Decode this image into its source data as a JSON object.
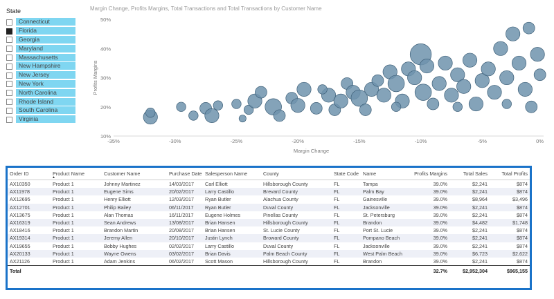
{
  "slicer": {
    "title": "State",
    "items": [
      {
        "label": "Connecticut",
        "checked": false
      },
      {
        "label": "Florida",
        "checked": true
      },
      {
        "label": "Georgia",
        "checked": false
      },
      {
        "label": "Maryland",
        "checked": false
      },
      {
        "label": "Massachusetts",
        "checked": false
      },
      {
        "label": "New Hampshire",
        "checked": false
      },
      {
        "label": "New Jersey",
        "checked": false
      },
      {
        "label": "New York",
        "checked": false
      },
      {
        "label": "North Carolina",
        "checked": false
      },
      {
        "label": "Rhode Island",
        "checked": false
      },
      {
        "label": "South Carolina",
        "checked": false
      },
      {
        "label": "Virginia",
        "checked": false
      }
    ]
  },
  "chart_data": {
    "type": "scatter",
    "title": "Margin Change, Profits Margins, Total Transactions and Total Transactions by Customer Name",
    "xlabel": "Margin Change",
    "ylabel": "Profits Margins",
    "xlim": [
      -35,
      0
    ],
    "ylim": [
      10,
      50
    ],
    "x_ticks": [
      "-35%",
      "-30%",
      "-25%",
      "-20%",
      "-15%",
      "-10%",
      "-5%",
      "0%"
    ],
    "y_ticks": [
      "10%",
      "20%",
      "30%",
      "40%",
      "50%"
    ],
    "grid": false,
    "bubble_color": "#6f93ad",
    "points": [
      {
        "x": -32,
        "y": 16.5,
        "size": 6
      },
      {
        "x": -32,
        "y": 18,
        "size": 4
      },
      {
        "x": -29.5,
        "y": 20,
        "size": 4
      },
      {
        "x": -28.5,
        "y": 17,
        "size": 4
      },
      {
        "x": -27.5,
        "y": 19.5,
        "size": 5
      },
      {
        "x": -27,
        "y": 17,
        "size": 6
      },
      {
        "x": -26.5,
        "y": 20.5,
        "size": 4
      },
      {
        "x": -25,
        "y": 21,
        "size": 4
      },
      {
        "x": -24.5,
        "y": 16,
        "size": 3
      },
      {
        "x": -24,
        "y": 19,
        "size": 4
      },
      {
        "x": -23.5,
        "y": 22,
        "size": 6
      },
      {
        "x": -23,
        "y": 25,
        "size": 5
      },
      {
        "x": -22,
        "y": 20,
        "size": 7
      },
      {
        "x": -21.5,
        "y": 17,
        "size": 5
      },
      {
        "x": -20.5,
        "y": 23,
        "size": 5
      },
      {
        "x": -20,
        "y": 20.5,
        "size": 6
      },
      {
        "x": -19.5,
        "y": 26,
        "size": 6
      },
      {
        "x": -18.5,
        "y": 19.5,
        "size": 5
      },
      {
        "x": -17.5,
        "y": 24,
        "size": 6
      },
      {
        "x": -17,
        "y": 19,
        "size": 5
      },
      {
        "x": -16.5,
        "y": 22,
        "size": 6
      },
      {
        "x": -16,
        "y": 28,
        "size": 5
      },
      {
        "x": -15.5,
        "y": 25,
        "size": 6
      },
      {
        "x": -15,
        "y": 23,
        "size": 7
      },
      {
        "x": -14.5,
        "y": 19,
        "size": 5
      },
      {
        "x": -14,
        "y": 26,
        "size": 6
      },
      {
        "x": -13.5,
        "y": 29,
        "size": 5
      },
      {
        "x": -13,
        "y": 24,
        "size": 6
      },
      {
        "x": -12.5,
        "y": 32,
        "size": 6
      },
      {
        "x": -12,
        "y": 28,
        "size": 7
      },
      {
        "x": -11.5,
        "y": 22,
        "size": 6
      },
      {
        "x": -11,
        "y": 33,
        "size": 6
      },
      {
        "x": -10.5,
        "y": 30,
        "size": 6
      },
      {
        "x": -10,
        "y": 38,
        "size": 9
      },
      {
        "x": -9.8,
        "y": 25,
        "size": 7
      },
      {
        "x": -9.5,
        "y": 34,
        "size": 6
      },
      {
        "x": -9,
        "y": 21,
        "size": 5
      },
      {
        "x": -8.5,
        "y": 28,
        "size": 6
      },
      {
        "x": -8,
        "y": 35,
        "size": 6
      },
      {
        "x": -7.5,
        "y": 24,
        "size": 6
      },
      {
        "x": -7,
        "y": 31,
        "size": 6
      },
      {
        "x": -6.5,
        "y": 27,
        "size": 6
      },
      {
        "x": -6,
        "y": 36,
        "size": 6
      },
      {
        "x": -5.5,
        "y": 21,
        "size": 6
      },
      {
        "x": -5,
        "y": 29,
        "size": 6
      },
      {
        "x": -4.5,
        "y": 33,
        "size": 6
      },
      {
        "x": -4,
        "y": 25,
        "size": 6
      },
      {
        "x": -3.5,
        "y": 40,
        "size": 6
      },
      {
        "x": -3,
        "y": 30,
        "size": 6
      },
      {
        "x": -2.5,
        "y": 45,
        "size": 6
      },
      {
        "x": -2,
        "y": 35,
        "size": 6
      },
      {
        "x": -1.5,
        "y": 26,
        "size": 6
      },
      {
        "x": -1.2,
        "y": 47,
        "size": 5
      },
      {
        "x": -0.5,
        "y": 38,
        "size": 6
      },
      {
        "x": -0.3,
        "y": 31,
        "size": 5
      },
      {
        "x": -1,
        "y": 20,
        "size": 5
      },
      {
        "x": -3,
        "y": 21,
        "size": 4
      },
      {
        "x": -7,
        "y": 20,
        "size": 4
      },
      {
        "x": -12,
        "y": 20,
        "size": 4
      },
      {
        "x": -18,
        "y": 26,
        "size": 4
      }
    ]
  },
  "table": {
    "columns": [
      {
        "label": "Order ID",
        "align": "left"
      },
      {
        "label": "Product Name",
        "align": "left"
      },
      {
        "label": "Customer Name",
        "align": "left"
      },
      {
        "label": "Purchase Date",
        "align": "left"
      },
      {
        "label": "Salesperson Name",
        "align": "left"
      },
      {
        "label": "County",
        "align": "left"
      },
      {
        "label": "State Code",
        "align": "left"
      },
      {
        "label": "Name",
        "align": "left"
      },
      {
        "label": "Profits Margins",
        "align": "right"
      },
      {
        "label": "Total Sales",
        "align": "right"
      },
      {
        "label": "Total Profits",
        "align": "right"
      }
    ],
    "rows": [
      [
        "AX10350",
        "Product 1",
        "Johnny Martinez",
        "14/03/2017",
        "Carl Elliott",
        "Hillsborough County",
        "FL",
        "Tampa",
        "39.0%",
        "$2,241",
        "$874"
      ],
      [
        "AX11978",
        "Product 1",
        "Eugene Sims",
        "20/02/2017",
        "Larry Castillo",
        "Brevard County",
        "FL",
        "Palm Bay",
        "39.0%",
        "$2,241",
        "$874"
      ],
      [
        "AX12695",
        "Product 1",
        "Henry Elliott",
        "12/03/2017",
        "Ryan Butler",
        "Alachua County",
        "FL",
        "Gainesville",
        "39.0%",
        "$8,964",
        "$3,496"
      ],
      [
        "AX12701",
        "Product 1",
        "Philip Bailey",
        "06/11/2017",
        "Ryan Butler",
        "Duval County",
        "FL",
        "Jacksonville",
        "39.0%",
        "$2,241",
        "$874"
      ],
      [
        "AX13675",
        "Product 1",
        "Alan Thomas",
        "16/11/2017",
        "Eugene Holmes",
        "Pinellas County",
        "FL",
        "St. Petersburg",
        "39.0%",
        "$2,241",
        "$874"
      ],
      [
        "AX16319",
        "Product 1",
        "Sean Andrews",
        "13/08/2017",
        "Brian Hansen",
        "Hillsborough County",
        "FL",
        "Brandon",
        "39.0%",
        "$4,482",
        "$1,748"
      ],
      [
        "AX18416",
        "Product 1",
        "Brandon Martin",
        "20/08/2017",
        "Brian Hansen",
        "St. Lucie County",
        "FL",
        "Port St. Lucie",
        "39.0%",
        "$2,241",
        "$874"
      ],
      [
        "AX19314",
        "Product 1",
        "Jeremy Allen",
        "20/10/2017",
        "Justin Lynch",
        "Broward County",
        "FL",
        "Pompano Beach",
        "39.0%",
        "$2,241",
        "$874"
      ],
      [
        "AX19655",
        "Product 1",
        "Bobby Hughes",
        "02/02/2017",
        "Larry Castillo",
        "Duval County",
        "FL",
        "Jacksonville",
        "39.0%",
        "$2,241",
        "$874"
      ],
      [
        "AX20133",
        "Product 1",
        "Wayne Owens",
        "03/02/2017",
        "Brian Davis",
        "Palm Beach County",
        "FL",
        "West Palm Beach",
        "39.0%",
        "$6,723",
        "$2,622"
      ],
      [
        "AX21126",
        "Product 1",
        "Adam Jenkins",
        "06/02/2017",
        "Scott Mason",
        "Hillsborough County",
        "FL",
        "Brandon",
        "39.0%",
        "$2,241",
        "$874"
      ]
    ],
    "total": {
      "label": "Total",
      "profits_margins": "32.7%",
      "total_sales": "$2,952,304",
      "total_profits": "$965,155"
    }
  }
}
